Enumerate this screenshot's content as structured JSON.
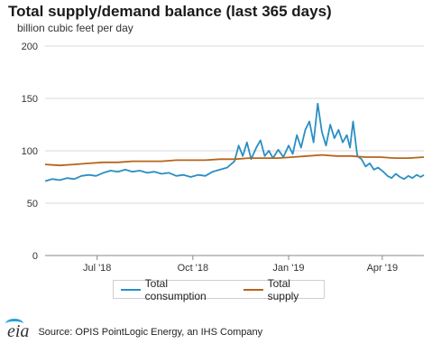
{
  "title": "Total supply/demand balance (last 365 days)",
  "subtitle": "billion cubic feet per day",
  "source": "Source: OPIS PointLogic Energy, an IHS Company",
  "logo_text": "eia",
  "chart_data": {
    "type": "line",
    "ylim": [
      0,
      200
    ],
    "yticks": [
      "0",
      "50",
      "100",
      "150",
      "200"
    ],
    "xlim": [
      "2018-05-12",
      "2019-05-11"
    ],
    "xticks": [
      {
        "label": "Jul '18",
        "date": "2018-07-01"
      },
      {
        "label": "Oct '18",
        "date": "2018-10-01"
      },
      {
        "label": "Jan '19",
        "date": "2019-01-01"
      },
      {
        "label": "Apr '19",
        "date": "2019-04-01"
      }
    ],
    "grid": true,
    "legend_placement": "bottom",
    "series": [
      {
        "name": "Total consumption",
        "color": "#2a8fc4",
        "points": [
          [
            "2018-05-12",
            71
          ],
          [
            "2018-05-19",
            73
          ],
          [
            "2018-05-26",
            72
          ],
          [
            "2018-06-02",
            74
          ],
          [
            "2018-06-09",
            73
          ],
          [
            "2018-06-16",
            76
          ],
          [
            "2018-06-23",
            77
          ],
          [
            "2018-06-30",
            76
          ],
          [
            "2018-07-07",
            79
          ],
          [
            "2018-07-14",
            81
          ],
          [
            "2018-07-21",
            80
          ],
          [
            "2018-07-28",
            82
          ],
          [
            "2018-08-04",
            80
          ],
          [
            "2018-08-11",
            81
          ],
          [
            "2018-08-18",
            79
          ],
          [
            "2018-08-25",
            80
          ],
          [
            "2018-09-01",
            78
          ],
          [
            "2018-09-08",
            79
          ],
          [
            "2018-09-15",
            76
          ],
          [
            "2018-09-22",
            77
          ],
          [
            "2018-09-29",
            75
          ],
          [
            "2018-10-06",
            77
          ],
          [
            "2018-10-13",
            76
          ],
          [
            "2018-10-20",
            80
          ],
          [
            "2018-10-27",
            82
          ],
          [
            "2018-11-03",
            84
          ],
          [
            "2018-11-10",
            90
          ],
          [
            "2018-11-14",
            105
          ],
          [
            "2018-11-18",
            95
          ],
          [
            "2018-11-22",
            108
          ],
          [
            "2018-11-26",
            92
          ],
          [
            "2018-12-01",
            103
          ],
          [
            "2018-12-05",
            110
          ],
          [
            "2018-12-09",
            95
          ],
          [
            "2018-12-13",
            100
          ],
          [
            "2018-12-17",
            93
          ],
          [
            "2018-12-22",
            101
          ],
          [
            "2018-12-27",
            94
          ],
          [
            "2019-01-01",
            105
          ],
          [
            "2019-01-05",
            97
          ],
          [
            "2019-01-09",
            115
          ],
          [
            "2019-01-13",
            103
          ],
          [
            "2019-01-17",
            120
          ],
          [
            "2019-01-21",
            128
          ],
          [
            "2019-01-25",
            108
          ],
          [
            "2019-01-29",
            145
          ],
          [
            "2019-02-02",
            118
          ],
          [
            "2019-02-06",
            105
          ],
          [
            "2019-02-10",
            125
          ],
          [
            "2019-02-14",
            112
          ],
          [
            "2019-02-18",
            120
          ],
          [
            "2019-02-22",
            108
          ],
          [
            "2019-02-26",
            115
          ],
          [
            "2019-03-01",
            103
          ],
          [
            "2019-03-04",
            128
          ],
          [
            "2019-03-08",
            95
          ],
          [
            "2019-03-12",
            92
          ],
          [
            "2019-03-16",
            85
          ],
          [
            "2019-03-20",
            88
          ],
          [
            "2019-03-24",
            82
          ],
          [
            "2019-03-28",
            84
          ],
          [
            "2019-04-02",
            80
          ],
          [
            "2019-04-06",
            76
          ],
          [
            "2019-04-10",
            74
          ],
          [
            "2019-04-14",
            78
          ],
          [
            "2019-04-18",
            75
          ],
          [
            "2019-04-22",
            73
          ],
          [
            "2019-04-26",
            76
          ],
          [
            "2019-04-30",
            74
          ],
          [
            "2019-05-04",
            77
          ],
          [
            "2019-05-08",
            75
          ],
          [
            "2019-05-11",
            77
          ]
        ]
      },
      {
        "name": "Total supply",
        "color": "#b8641a",
        "points": [
          [
            "2018-05-12",
            87
          ],
          [
            "2018-05-26",
            86
          ],
          [
            "2018-06-09",
            87
          ],
          [
            "2018-06-23",
            88
          ],
          [
            "2018-07-07",
            89
          ],
          [
            "2018-07-21",
            89
          ],
          [
            "2018-08-04",
            90
          ],
          [
            "2018-08-18",
            90
          ],
          [
            "2018-09-01",
            90
          ],
          [
            "2018-09-15",
            91
          ],
          [
            "2018-09-29",
            91
          ],
          [
            "2018-10-13",
            91
          ],
          [
            "2018-10-27",
            92
          ],
          [
            "2018-11-10",
            92
          ],
          [
            "2018-11-24",
            93
          ],
          [
            "2018-12-08",
            93
          ],
          [
            "2018-12-22",
            93
          ],
          [
            "2019-01-05",
            94
          ],
          [
            "2019-01-19",
            95
          ],
          [
            "2019-02-02",
            96
          ],
          [
            "2019-02-16",
            95
          ],
          [
            "2019-03-02",
            95
          ],
          [
            "2019-03-16",
            94
          ],
          [
            "2019-03-30",
            94
          ],
          [
            "2019-04-13",
            93
          ],
          [
            "2019-04-27",
            93
          ],
          [
            "2019-05-11",
            94
          ]
        ]
      }
    ]
  }
}
